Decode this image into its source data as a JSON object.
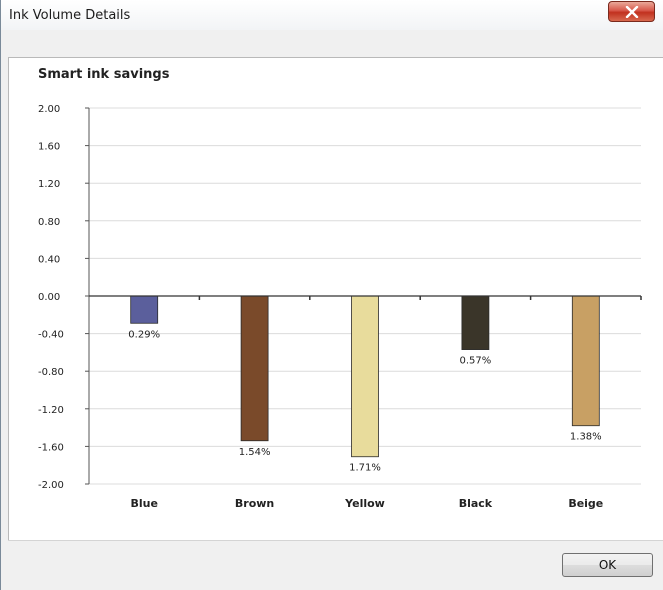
{
  "window": {
    "title": "Ink Volume Details",
    "close_icon": "close-x-icon"
  },
  "footer": {
    "ok_label": "OK"
  },
  "chart_data": {
    "type": "bar",
    "title": "Smart ink savings",
    "categories": [
      "Blue",
      "Brown",
      "Yellow",
      "Black",
      "Beige"
    ],
    "values": [
      -0.29,
      -1.54,
      -1.71,
      -0.57,
      -1.38
    ],
    "data_labels": [
      "0.29%",
      "1.54%",
      "1.71%",
      "0.57%",
      "1.38%"
    ],
    "colors": [
      "#5b5f9c",
      "#7a4a2a",
      "#e8dc9c",
      "#3a3529",
      "#c8a064"
    ],
    "ylim": [
      -2.0,
      2.0
    ],
    "yticks": [
      "2.00",
      "1.60",
      "1.20",
      "0.80",
      "0.40",
      "0.00",
      "-0.40",
      "-0.80",
      "-1.20",
      "-1.60",
      "-2.00"
    ],
    "grid": true,
    "xlabel": "",
    "ylabel": ""
  }
}
